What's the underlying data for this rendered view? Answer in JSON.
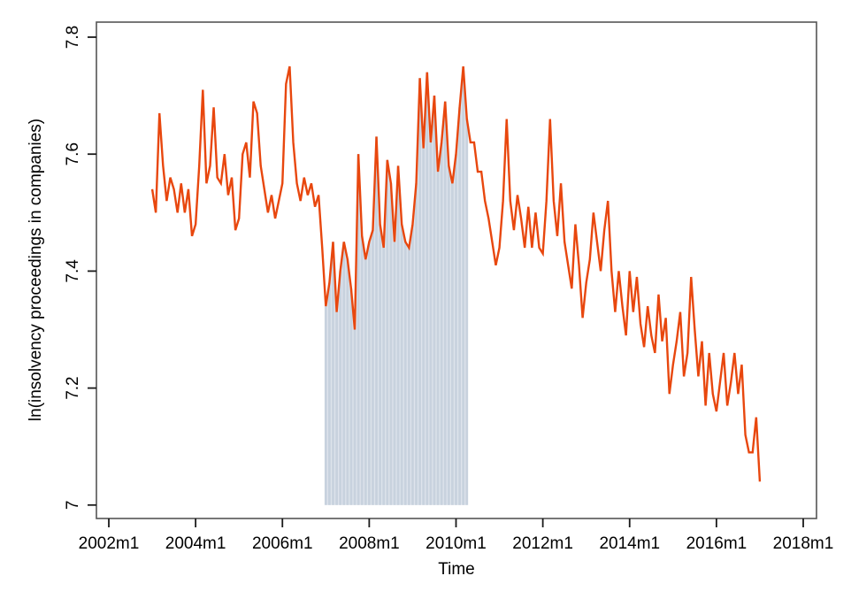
{
  "chart_data": {
    "type": "line",
    "title": "",
    "xlabel": "Time",
    "ylabel": "ln(insolvency proceedings in companies)",
    "x_tick_labels": [
      "2002m1",
      "2004m1",
      "2006m1",
      "2008m1",
      "2010m1",
      "2012m1",
      "2014m1",
      "2016m1",
      "2018m1"
    ],
    "y_tick_labels": [
      "7",
      "7.2",
      "7.4",
      "7.6",
      "7.8"
    ],
    "xlim": [
      "2002m1",
      "2018m1"
    ],
    "ylim": [
      7.0,
      7.8
    ],
    "grid": false,
    "legend": "none",
    "line_color": "#e8470e",
    "shaded_region": {
      "from": "2007m1",
      "to": "2010m4",
      "style": "monthly-vertical-bars-under-line",
      "bar_fill": "#c8d2de",
      "bg_fill": "#dee4ec",
      "base_value": 7.0
    },
    "series": [
      {
        "name": "ln(insolvency proceedings in companies)",
        "start": "2003m1",
        "frequency": "monthly",
        "values": [
          7.54,
          7.5,
          7.67,
          7.58,
          7.52,
          7.56,
          7.54,
          7.5,
          7.55,
          7.5,
          7.54,
          7.46,
          7.48,
          7.58,
          7.71,
          7.55,
          7.58,
          7.68,
          7.56,
          7.55,
          7.6,
          7.53,
          7.56,
          7.47,
          7.49,
          7.6,
          7.62,
          7.56,
          7.69,
          7.67,
          7.58,
          7.54,
          7.5,
          7.53,
          7.49,
          7.52,
          7.55,
          7.72,
          7.75,
          7.62,
          7.55,
          7.52,
          7.56,
          7.53,
          7.55,
          7.51,
          7.53,
          7.44,
          7.34,
          7.38,
          7.45,
          7.33,
          7.4,
          7.45,
          7.42,
          7.37,
          7.3,
          7.6,
          7.46,
          7.42,
          7.45,
          7.47,
          7.63,
          7.48,
          7.44,
          7.59,
          7.55,
          7.45,
          7.58,
          7.48,
          7.45,
          7.44,
          7.48,
          7.55,
          7.73,
          7.61,
          7.74,
          7.62,
          7.7,
          7.57,
          7.62,
          7.69,
          7.58,
          7.55,
          7.6,
          7.68,
          7.75,
          7.66,
          7.62,
          7.62,
          7.57,
          7.57,
          7.52,
          7.49,
          7.45,
          7.41,
          7.44,
          7.52,
          7.66,
          7.52,
          7.47,
          7.53,
          7.49,
          7.44,
          7.51,
          7.44,
          7.5,
          7.44,
          7.43,
          7.52,
          7.66,
          7.52,
          7.46,
          7.55,
          7.45,
          7.41,
          7.37,
          7.48,
          7.41,
          7.32,
          7.38,
          7.42,
          7.5,
          7.45,
          7.4,
          7.47,
          7.52,
          7.4,
          7.33,
          7.4,
          7.34,
          7.29,
          7.4,
          7.33,
          7.39,
          7.31,
          7.27,
          7.34,
          7.29,
          7.26,
          7.36,
          7.28,
          7.32,
          7.19,
          7.24,
          7.28,
          7.33,
          7.22,
          7.26,
          7.39,
          7.3,
          7.22,
          7.28,
          7.17,
          7.26,
          7.19,
          7.16,
          7.21,
          7.26,
          7.17,
          7.21,
          7.26,
          7.19,
          7.24,
          7.12,
          7.09,
          7.09,
          7.15,
          7.04
        ]
      }
    ],
    "frame_color": "#555555",
    "tick_color": "#1a1a1a"
  }
}
